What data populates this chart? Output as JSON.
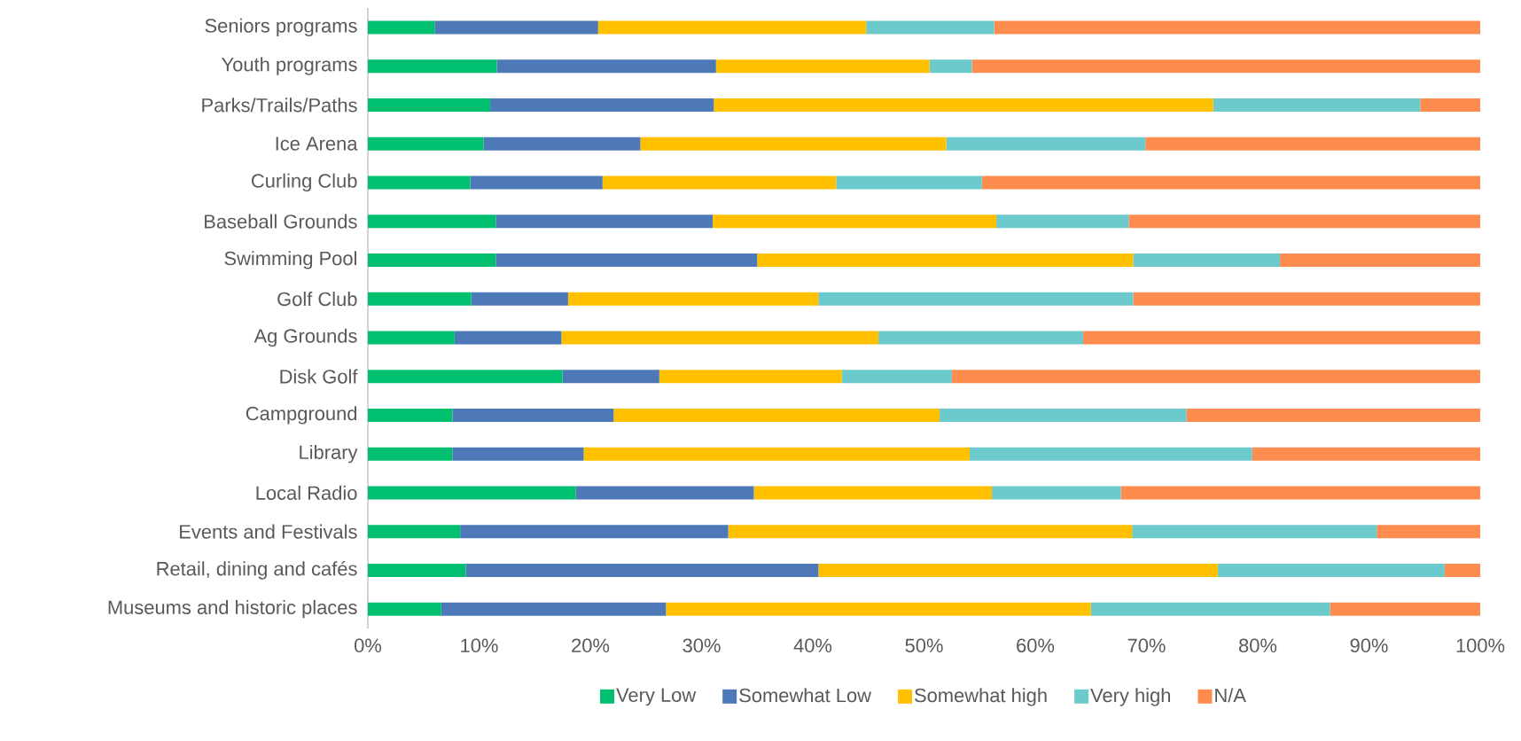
{
  "chart_data": {
    "type": "bar",
    "orientation": "horizontal",
    "stacked": true,
    "legend": "bottom",
    "categories": [
      "Seniors programs",
      "Youth programs",
      "Parks/Trails/Paths",
      "Ice Arena",
      "Curling Club",
      "Baseball Grounds",
      "Swimming Pool",
      "Golf Club",
      "Ag Grounds",
      "Disk Golf",
      "Campground",
      "Library",
      "Local Radio",
      "Events and Festivals",
      "Retail, dining and cafés",
      "Museums and historic places"
    ],
    "xlim": [
      0,
      100
    ],
    "xticks": [
      {
        "value": 0,
        "label": "0%"
      },
      {
        "value": 10,
        "label": "10%"
      },
      {
        "value": 20,
        "label": "20%"
      },
      {
        "value": 30,
        "label": "30%"
      },
      {
        "value": 40,
        "label": "40%"
      },
      {
        "value": 50,
        "label": "50%"
      },
      {
        "value": 60,
        "label": "60%"
      },
      {
        "value": 70,
        "label": "70%"
      },
      {
        "value": 80,
        "label": "80%"
      },
      {
        "value": 90,
        "label": "90%"
      },
      {
        "value": 100,
        "label": "100%"
      }
    ],
    "series": [
      {
        "name": "Very Low",
        "color": "#00c06f",
        "values": [
          6.0,
          11.6,
          11.0,
          10.4,
          9.2,
          11.5,
          11.5,
          9.3,
          7.8,
          17.5,
          7.6,
          7.6,
          18.7,
          8.3,
          8.8,
          6.6
        ]
      },
      {
        "name": "Somewhat Low",
        "color": "#4e79b8",
        "values": [
          14.7,
          19.7,
          20.1,
          14.1,
          11.9,
          19.5,
          23.5,
          8.7,
          9.6,
          8.7,
          14.5,
          11.8,
          16.0,
          24.1,
          31.7,
          20.2
        ]
      },
      {
        "name": "Somewhat high",
        "color": "#ffc000",
        "values": [
          24.1,
          19.2,
          44.9,
          27.5,
          21.0,
          25.5,
          33.8,
          22.5,
          28.5,
          16.4,
          29.3,
          34.7,
          21.4,
          36.3,
          35.9,
          38.2
        ]
      },
      {
        "name": "Very high",
        "color": "#6ccacc",
        "values": [
          11.5,
          3.8,
          18.6,
          17.9,
          13.1,
          11.9,
          13.2,
          28.3,
          18.4,
          9.9,
          22.2,
          25.4,
          11.6,
          22.0,
          20.4,
          21.5
        ]
      },
      {
        "name": "N/A",
        "color": "#ff8c4f",
        "values": [
          43.7,
          45.7,
          5.4,
          30.1,
          44.8,
          31.6,
          18.0,
          31.2,
          35.7,
          47.5,
          26.4,
          20.5,
          32.3,
          9.3,
          3.2,
          13.5
        ]
      }
    ]
  }
}
